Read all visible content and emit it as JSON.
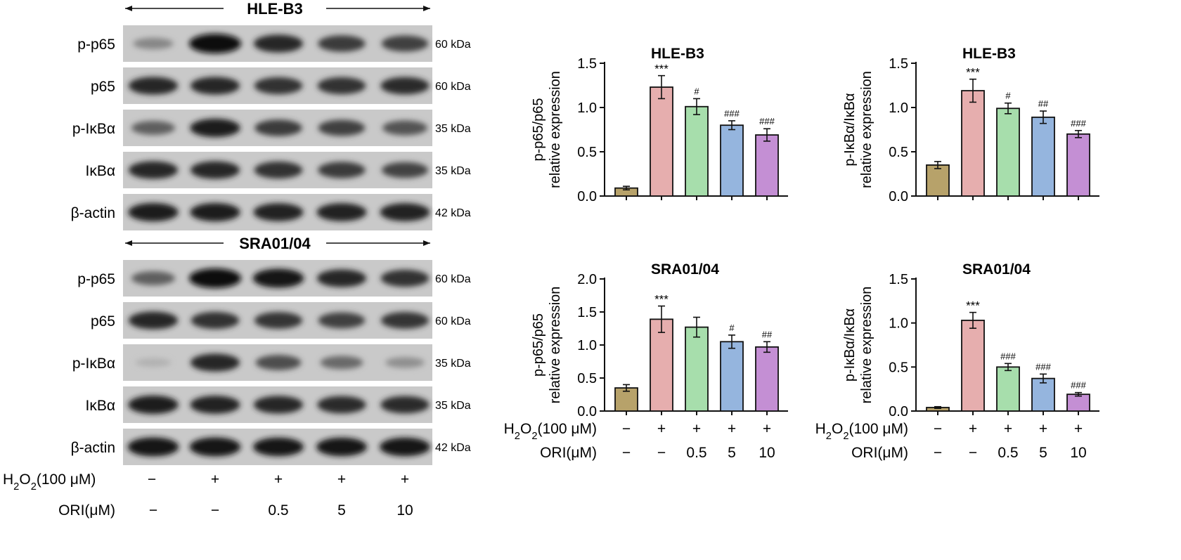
{
  "blots": [
    {
      "cell_line": "HLE-B3",
      "rows": [
        {
          "label": "p-p65",
          "kda": "60 kDa",
          "intensity": [
            0.35,
            1.0,
            0.85,
            0.75,
            0.72
          ]
        },
        {
          "label": "p65",
          "kda": "60 kDa",
          "intensity": [
            0.85,
            0.85,
            0.8,
            0.8,
            0.82
          ]
        },
        {
          "label": "p-IκBα",
          "kda": "35 kDa",
          "intensity": [
            0.55,
            0.9,
            0.75,
            0.72,
            0.62
          ]
        },
        {
          "label": "IκBα",
          "kda": "35 kDa",
          "intensity": [
            0.85,
            0.85,
            0.8,
            0.75,
            0.7
          ]
        },
        {
          "label": "β-actin",
          "kda": "42 kDa",
          "intensity": [
            0.9,
            0.9,
            0.88,
            0.88,
            0.88
          ]
        }
      ]
    },
    {
      "cell_line": "SRA01/04",
      "rows": [
        {
          "label": "p-p65",
          "kda": "60 kDa",
          "intensity": [
            0.55,
            1.0,
            0.95,
            0.85,
            0.8
          ]
        },
        {
          "label": "p65",
          "kda": "60 kDa",
          "intensity": [
            0.85,
            0.8,
            0.78,
            0.72,
            0.78
          ]
        },
        {
          "label": "p-IκBα",
          "kda": "35 kDa",
          "intensity": [
            0.12,
            0.85,
            0.65,
            0.5,
            0.3
          ]
        },
        {
          "label": "IκBα",
          "kda": "35 kDa",
          "intensity": [
            0.9,
            0.88,
            0.85,
            0.82,
            0.82
          ]
        },
        {
          "label": "β-actin",
          "kda": "42 kDa",
          "intensity": [
            0.95,
            0.95,
            0.92,
            0.92,
            0.92
          ]
        }
      ]
    }
  ],
  "treatment_table": {
    "h2o2_label": "H2O2(100 μM)",
    "ori_label": "ORI(μM)",
    "h2o2": [
      "−",
      "+",
      "+",
      "+",
      "+"
    ],
    "ori": [
      "−",
      "−",
      "0.5",
      "5",
      "10"
    ]
  },
  "colors": {
    "bars": [
      "#b7a26a",
      "#e6aeae",
      "#a7deac",
      "#95b5de",
      "#c48fd4"
    ]
  },
  "chart_data": [
    {
      "type": "bar",
      "title": "HLE-B3",
      "ylabel": [
        "p-p65/p65",
        "relative expression"
      ],
      "ylim": [
        0,
        1.5
      ],
      "yticks": [
        "0.0",
        "0.5",
        "1.0",
        "1.5"
      ],
      "values": [
        0.09,
        1.23,
        1.01,
        0.8,
        0.69
      ],
      "errors": [
        0.02,
        0.13,
        0.09,
        0.05,
        0.07
      ],
      "annotations": [
        "",
        "***",
        "#",
        "###",
        "###"
      ],
      "show_xaxis": false
    },
    {
      "type": "bar",
      "title": "HLE-B3",
      "ylabel": [
        "p-IκBα/IκBα",
        "relative expression"
      ],
      "ylim": [
        0,
        1.5
      ],
      "yticks": [
        "0.0",
        "0.5",
        "1.0",
        "1.5"
      ],
      "values": [
        0.35,
        1.19,
        0.99,
        0.89,
        0.7
      ],
      "errors": [
        0.04,
        0.13,
        0.06,
        0.07,
        0.04
      ],
      "annotations": [
        "",
        "***",
        "#",
        "##",
        "###"
      ],
      "show_xaxis": false
    },
    {
      "type": "bar",
      "title": "SRA01/04",
      "ylabel": [
        "p-p65/p65",
        "relative expression"
      ],
      "ylim": [
        0,
        2.0
      ],
      "yticks": [
        "0.0",
        "0.5",
        "1.0",
        "1.5",
        "2.0"
      ],
      "values": [
        0.35,
        1.39,
        1.27,
        1.05,
        0.97
      ],
      "errors": [
        0.05,
        0.2,
        0.15,
        0.1,
        0.08
      ],
      "annotations": [
        "",
        "***",
        "",
        "#",
        "##"
      ],
      "show_xaxis": true
    },
    {
      "type": "bar",
      "title": "SRA01/04",
      "ylabel": [
        "p-IκBα/IκBα",
        "relative expression"
      ],
      "ylim": [
        0,
        1.5
      ],
      "yticks": [
        "0.0",
        "0.5",
        "1.0",
        "1.5"
      ],
      "values": [
        0.04,
        1.03,
        0.5,
        0.37,
        0.19
      ],
      "errors": [
        0.01,
        0.09,
        0.04,
        0.05,
        0.02
      ],
      "annotations": [
        "",
        "***",
        "###",
        "###",
        "###"
      ],
      "show_xaxis": true
    }
  ]
}
